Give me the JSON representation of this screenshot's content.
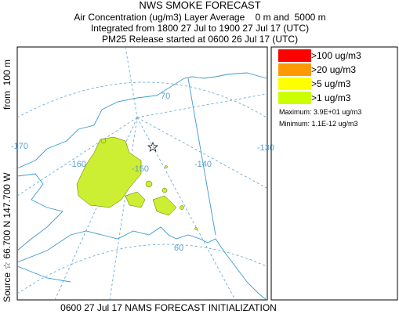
{
  "header": {
    "title": "NWS SMOKE FORECAST",
    "lines": [
      "Air Concentration (ug/m3) Layer Average    0 m and  5000 m",
      "Integrated from 1800 27 Jul to 1900 27 Jul 17 (UTC)",
      "PM25 Release started at 0600 26 Jul 17 (UTC)"
    ]
  },
  "legend": {
    "items": [
      {
        "label": ">100 ug/m3",
        "color": "#ff0000"
      },
      {
        "label": ">20 ug/m3",
        "color": "#ff9900"
      },
      {
        "label": ">5 ug/m3",
        "color": "#ffff00"
      },
      {
        "label": ">1 ug/m3",
        "color": "#ccff00"
      }
    ],
    "maximum": "Maximum: 3.9E+01 ug/m3",
    "minimum": "Minimum: 1.1E-12 ug/m3"
  },
  "map": {
    "labels": [
      "70",
      "-170",
      "-160",
      "-150",
      "-140",
      "-130",
      "60"
    ]
  },
  "side_labels": [
    "Source ☆ 66.700 N 147.700 W",
    "from  100 m"
  ],
  "footer": "0600 27 Jul 17 NAMS FORECAST INITIALIZATION"
}
